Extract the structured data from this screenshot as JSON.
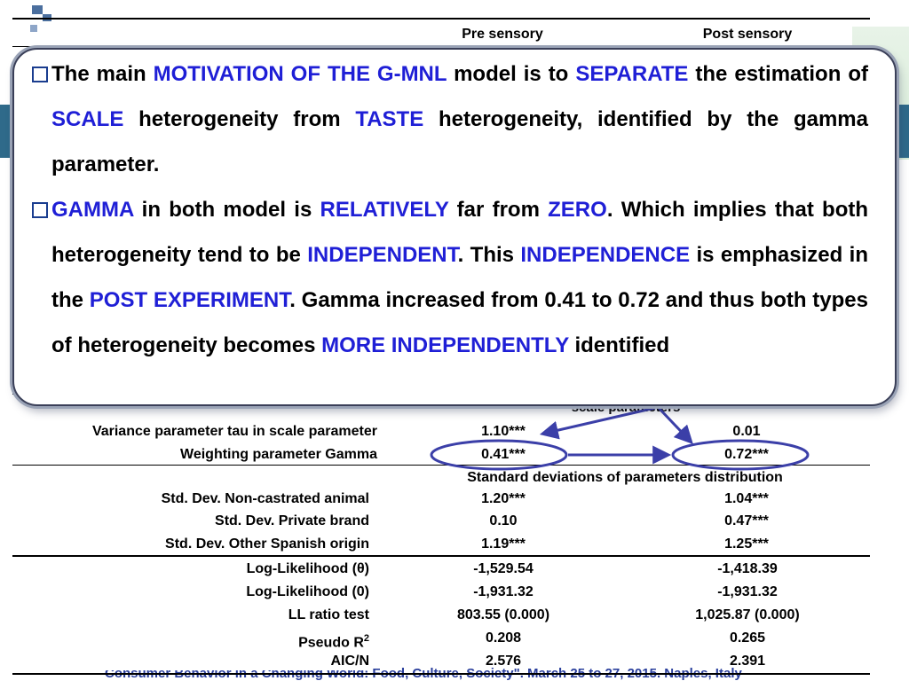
{
  "table_header": {
    "pre": "Pre sensory",
    "post": "Post sensory"
  },
  "callout": {
    "bullet1": [
      {
        "t": "The main ",
        "hl": false
      },
      {
        "t": "MOTIVATION OF THE G-MNL",
        "hl": true
      },
      {
        "t": " model is to ",
        "hl": false
      },
      {
        "t": "SEPARATE",
        "hl": true
      },
      {
        "t": " the estimation of ",
        "hl": false
      },
      {
        "t": "SCALE",
        "hl": true
      },
      {
        "t": " heterogeneity from ",
        "hl": false
      },
      {
        "t": "TASTE",
        "hl": true
      },
      {
        "t": " heterogeneity, identified by the gamma parameter.",
        "hl": false
      }
    ],
    "bullet2": [
      {
        "t": "GAMMA",
        "hl": true
      },
      {
        "t": " in both model is ",
        "hl": false
      },
      {
        "t": "RELATIVELY",
        "hl": true
      },
      {
        "t": " far from ",
        "hl": false
      },
      {
        "t": "ZERO",
        "hl": true
      },
      {
        "t": ". Which implies that both heterogeneity tend to be ",
        "hl": false
      },
      {
        "t": "INDEPENDENT",
        "hl": true
      },
      {
        "t": ". This ",
        "hl": false
      },
      {
        "t": "INDEPENDENCE",
        "hl": true
      },
      {
        "t": " is emphasized in the ",
        "hl": false
      },
      {
        "t": "POST EXPERIMENT",
        "hl": true
      },
      {
        "t": ". Gamma increased from 0.41 to 0.72 and thus both types of heterogeneity becomes ",
        "hl": false
      },
      {
        "t": "MORE INDEPENDENTLY",
        "hl": true
      },
      {
        "t": " identified",
        "hl": false
      }
    ]
  },
  "section_scale": "scale parameters",
  "scale_rows": [
    {
      "label": "Variance parameter tau in scale parameter",
      "pre": "1.10***",
      "post": "0.01"
    },
    {
      "label": "Weighting parameter Gamma",
      "pre": "0.41***",
      "post": "0.72***"
    }
  ],
  "section_sd": "Standard deviations of parameters distribution",
  "sd_rows": [
    {
      "label": "Std. Dev. Non-castrated animal",
      "pre": "1.20***",
      "post": "1.04***"
    },
    {
      "label": "Std. Dev. Private brand",
      "pre": "0.10",
      "post": "0.47***"
    },
    {
      "label": "Std. Dev. Other Spanish origin",
      "pre": "1.19***",
      "post": "1.25***"
    }
  ],
  "fit_rows": [
    {
      "label": "Log-Likelihood (θ)",
      "pre": "-1,529.54",
      "post": "-1,418.39"
    },
    {
      "label": "Log-Likelihood (0)",
      "pre": "-1,931.32",
      "post": "-1,931.32"
    },
    {
      "label": "LL ratio test",
      "pre": "803.55 (0.000)",
      "post": "1,025.87 (0.000)"
    },
    {
      "label": "Pseudo R",
      "pre": "0.208",
      "post": "0.265"
    },
    {
      "label": "AIC/N",
      "pre": "2.576",
      "post": "2.391"
    }
  ],
  "pseudo_sup": "2",
  "footer": "Consumer Behavior in a Changing World: Food, Culture, Society\". March 25 to 27, 2015. Naples, Italy",
  "colors": {
    "highlight": "#1f1fd6",
    "arrow": "#3b3fa8",
    "frame": "#3a3f58"
  }
}
